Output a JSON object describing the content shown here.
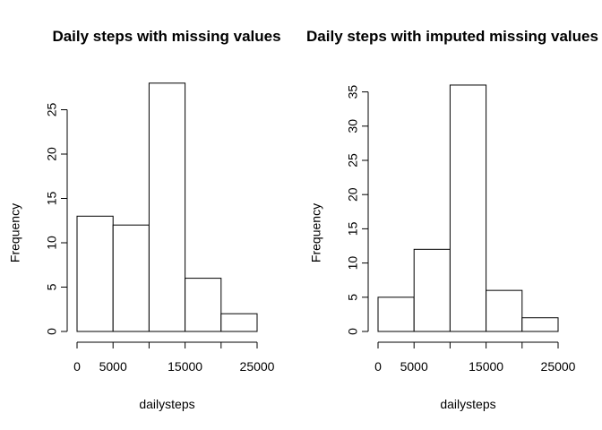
{
  "chart_data": [
    {
      "type": "bar",
      "title": "Daily steps with missing values",
      "xlabel": "dailysteps",
      "ylabel": "Frequency",
      "bins": [
        [
          0,
          5000
        ],
        [
          5000,
          10000
        ],
        [
          10000,
          15000
        ],
        [
          15000,
          20000
        ],
        [
          20000,
          25000
        ]
      ],
      "values": [
        13,
        12,
        28,
        6,
        2
      ],
      "xlim": [
        0,
        25000
      ],
      "ylim": [
        0,
        28
      ],
      "x_ticks": [
        0,
        5000,
        10000,
        15000,
        20000,
        25000
      ],
      "x_tick_labels": [
        "0",
        "5000",
        "",
        "15000",
        "",
        "25000"
      ],
      "y_ticks": [
        0,
        5,
        10,
        15,
        20,
        25
      ],
      "y_tick_labels": [
        "0",
        "5",
        "10",
        "15",
        "20",
        "25"
      ],
      "grid": false
    },
    {
      "type": "bar",
      "title": "Daily steps with imputed missing values",
      "xlabel": "dailysteps",
      "ylabel": "Frequency",
      "bins": [
        [
          0,
          5000
        ],
        [
          5000,
          10000
        ],
        [
          10000,
          15000
        ],
        [
          15000,
          20000
        ],
        [
          20000,
          25000
        ]
      ],
      "values": [
        5,
        12,
        36,
        6,
        2
      ],
      "xlim": [
        0,
        25000
      ],
      "ylim": [
        0,
        36
      ],
      "x_ticks": [
        0,
        5000,
        10000,
        15000,
        20000,
        25000
      ],
      "x_tick_labels": [
        "0",
        "5000",
        "",
        "15000",
        "",
        "25000"
      ],
      "y_ticks": [
        0,
        5,
        10,
        15,
        20,
        25,
        30,
        35
      ],
      "y_tick_labels": [
        "0",
        "5",
        "10",
        "15",
        "20",
        "25",
        "30",
        "35"
      ],
      "grid": false
    }
  ]
}
